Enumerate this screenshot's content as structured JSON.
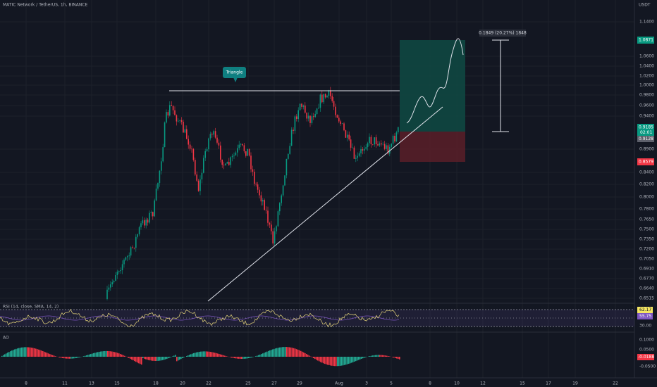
{
  "header": {
    "symbol": "MATIC Network / TetherUS, 1h, BINANCE",
    "currency": "USDT"
  },
  "price_axis": {
    "labels": [
      "1.1400",
      "1.0600",
      "1.0400",
      "1.0200",
      "1.0000",
      "0.9800",
      "0.9600",
      "0.9400",
      "0.8900",
      "0.8400",
      "0.8200",
      "0.8000",
      "0.7800",
      "0.7650",
      "0.7500",
      "0.7350",
      "0.7200",
      "0.7050",
      "0.6910",
      "0.6770",
      "0.6640",
      "0.6515"
    ],
    "tags": {
      "target": "1.0871",
      "current": "0.9185",
      "countdown": "02:01",
      "previous": "0.9128",
      "stop": "0.8579"
    }
  },
  "annotations": {
    "pattern": "Triangle",
    "measure": "0.1849 (20.27%) 1848"
  },
  "rsi": {
    "title": "RSI (14, close, SMA, 14, 2)",
    "value": "62.17",
    "sma": "55.75",
    "level": "30.00"
  },
  "ao": {
    "title": "AO",
    "labels": [
      "0.1000",
      "0.0500",
      "-0.0500"
    ],
    "value": "-0.0188"
  },
  "time_axis": {
    "labels": [
      "8",
      "11",
      "13",
      "15",
      "18",
      "20",
      "22",
      "25",
      "27",
      "29",
      "Aug",
      "3",
      "5",
      "8",
      "10",
      "12",
      "15",
      "17",
      "19",
      "22"
    ]
  }
}
